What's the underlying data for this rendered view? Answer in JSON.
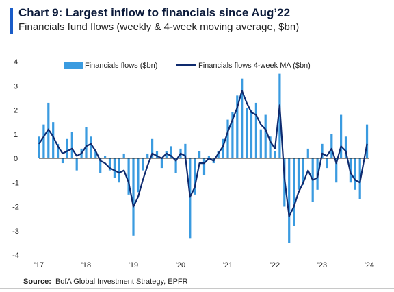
{
  "title": "Chart 9: Largest inflow to financials since Aug’22",
  "subtitle": "Financials fund flows (weekly & 4-week moving average, $bn)",
  "source": {
    "label": "Source:",
    "text": "BofA Global Investment Strategy, EPFR"
  },
  "chart_data": {
    "type": "bar",
    "x_range": [
      "2017-01",
      "2023-12"
    ],
    "xticks": [
      "'17",
      "'18",
      "'19",
      "'20",
      "'21",
      "'22",
      "'23",
      "'24"
    ],
    "ylim": [
      -4,
      4
    ],
    "yticks": [
      "4",
      "3",
      "2",
      "1",
      "0",
      "-1",
      "-2",
      "-3",
      "-4"
    ],
    "legend_position": "top",
    "colors": {
      "bars": "#3a9be0",
      "ma": "#0e2a6e",
      "zero_line": "#1a1a1a"
    },
    "series": [
      {
        "name": "Financials flows ($bn)",
        "type": "bar",
        "x": [
          2017.0,
          2017.1,
          2017.2,
          2017.3,
          2017.4,
          2017.5,
          2017.6,
          2017.7,
          2017.8,
          2017.9,
          2018.0,
          2018.1,
          2018.2,
          2018.3,
          2018.4,
          2018.5,
          2018.6,
          2018.7,
          2018.8,
          2018.9,
          2019.0,
          2019.1,
          2019.2,
          2019.3,
          2019.4,
          2019.5,
          2019.6,
          2019.7,
          2019.8,
          2019.9,
          2020.0,
          2020.1,
          2020.2,
          2020.3,
          2020.4,
          2020.5,
          2020.6,
          2020.7,
          2020.8,
          2020.9,
          2021.0,
          2021.1,
          2021.2,
          2021.3,
          2021.4,
          2021.5,
          2021.6,
          2021.7,
          2021.8,
          2021.9,
          2022.0,
          2022.1,
          2022.2,
          2022.3,
          2022.4,
          2022.5,
          2022.6,
          2022.7,
          2022.8,
          2022.9,
          2023.0,
          2023.1,
          2023.2,
          2023.3,
          2023.4,
          2023.5,
          2023.6,
          2023.7,
          2023.8,
          2023.95
        ],
        "values": [
          0.9,
          1.4,
          2.3,
          1.5,
          0.6,
          -0.2,
          0.8,
          1.1,
          -0.5,
          0.4,
          1.3,
          0.9,
          0.3,
          -0.6,
          0.1,
          -0.5,
          -0.8,
          -1.0,
          0.2,
          -1.5,
          -3.2,
          -1.4,
          -0.5,
          0.2,
          0.8,
          0.3,
          -0.4,
          0.3,
          0.5,
          -0.6,
          0.4,
          0.6,
          -3.3,
          -1.5,
          0.3,
          -0.7,
          0.1,
          -0.2,
          0.3,
          0.8,
          1.6,
          1.9,
          2.6,
          3.3,
          2.1,
          2.0,
          2.3,
          1.2,
          1.8,
          0.9,
          0.3,
          3.5,
          -2.0,
          -3.5,
          -2.8,
          -1.3,
          -1.1,
          0.4,
          -1.8,
          -1.3,
          0.6,
          -0.4,
          1.0,
          -1.0,
          1.8,
          0.9,
          -1.0,
          -1.3,
          -1.7,
          1.4
        ]
      },
      {
        "name": "Financials flows 4-week MA ($bn)",
        "type": "line",
        "x": [
          2017.0,
          2017.1,
          2017.2,
          2017.3,
          2017.4,
          2017.5,
          2017.6,
          2017.7,
          2017.8,
          2017.9,
          2018.0,
          2018.1,
          2018.2,
          2018.3,
          2018.4,
          2018.5,
          2018.6,
          2018.7,
          2018.8,
          2018.9,
          2019.0,
          2019.1,
          2019.2,
          2019.3,
          2019.4,
          2019.5,
          2019.6,
          2019.7,
          2019.8,
          2019.9,
          2020.0,
          2020.1,
          2020.2,
          2020.3,
          2020.4,
          2020.5,
          2020.6,
          2020.7,
          2020.8,
          2020.9,
          2021.0,
          2021.1,
          2021.2,
          2021.3,
          2021.4,
          2021.5,
          2021.6,
          2021.7,
          2021.8,
          2021.9,
          2022.0,
          2022.1,
          2022.2,
          2022.3,
          2022.4,
          2022.5,
          2022.6,
          2022.7,
          2022.8,
          2022.9,
          2023.0,
          2023.1,
          2023.2,
          2023.3,
          2023.4,
          2023.5,
          2023.6,
          2023.7,
          2023.8,
          2023.95
        ],
        "values": [
          0.6,
          0.9,
          1.2,
          0.9,
          0.5,
          0.2,
          0.3,
          0.4,
          0.1,
          0.2,
          0.5,
          0.6,
          0.3,
          -0.1,
          -0.2,
          -0.4,
          -0.5,
          -0.6,
          -0.5,
          -1.0,
          -2.0,
          -1.6,
          -0.9,
          -0.3,
          0.2,
          0.1,
          0.0,
          0.2,
          0.1,
          -0.1,
          0.2,
          0.1,
          -1.6,
          -1.2,
          -0.2,
          -0.2,
          0.0,
          -0.1,
          0.2,
          0.5,
          1.1,
          1.6,
          2.1,
          2.8,
          2.3,
          1.9,
          1.8,
          1.4,
          1.2,
          0.7,
          0.4,
          2.2,
          -0.8,
          -2.4,
          -2.0,
          -1.4,
          -1.0,
          -0.5,
          -0.9,
          -0.8,
          0.2,
          0.1,
          0.4,
          -0.2,
          0.5,
          0.3,
          -0.6,
          -0.9,
          -1.0,
          0.6
        ]
      }
    ]
  }
}
